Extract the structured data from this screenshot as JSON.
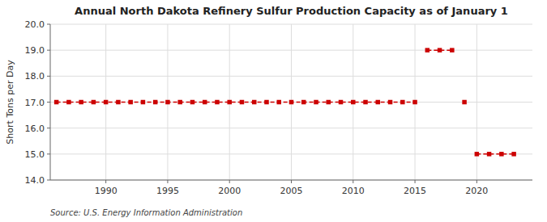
{
  "chart_data": {
    "type": "line",
    "title": "Annual North Dakota Refinery Sulfur Production Capacity as of January 1",
    "y_label": "Short Tons per Day",
    "source": "Source: U.S. Energy Information Administration",
    "x": [
      1986,
      1987,
      1988,
      1989,
      1990,
      1991,
      1992,
      1993,
      1994,
      1995,
      1996,
      1997,
      1998,
      1999,
      2000,
      2001,
      2002,
      2003,
      2004,
      2005,
      2006,
      2007,
      2008,
      2009,
      2010,
      2011,
      2012,
      2013,
      2014,
      2015,
      2016,
      2017,
      2018,
      2019,
      2020,
      2021,
      2022,
      2023
    ],
    "values": [
      17.0,
      17.0,
      17.0,
      17.0,
      17.0,
      17.0,
      17.0,
      17.0,
      17.0,
      17.0,
      17.0,
      17.0,
      17.0,
      17.0,
      17.0,
      17.0,
      17.0,
      17.0,
      17.0,
      17.0,
      17.0,
      17.0,
      17.0,
      17.0,
      17.0,
      17.0,
      17.0,
      17.0,
      17.0,
      17.0,
      19.0,
      19.0,
      19.0,
      17.0,
      15.0,
      15.0,
      15.0,
      15.0
    ],
    "color": "#cc0000",
    "marker": "square",
    "line_style": "dashed",
    "xlim": [
      1985.5,
      2024.5
    ],
    "xticks": [
      1990,
      1995,
      2000,
      2005,
      2010,
      2015,
      2020
    ],
    "ylim": [
      14.0,
      20.0
    ],
    "yticks": [
      {
        "value": 14.0,
        "label": "14.0"
      },
      {
        "value": 15.0,
        "label": "15.0"
      },
      {
        "value": 16.0,
        "label": "16.0"
      },
      {
        "value": 17.0,
        "label": "17.0"
      },
      {
        "value": 18.0,
        "label": "18.0"
      },
      {
        "value": 19.0,
        "label": "19.0"
      },
      {
        "value": 20.0,
        "label": "20.0"
      }
    ],
    "grid": true
  }
}
